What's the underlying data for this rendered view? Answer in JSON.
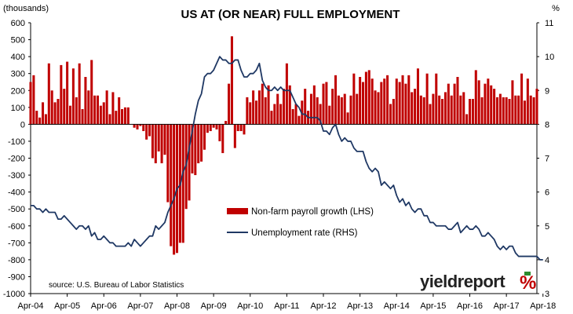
{
  "chart_data": {
    "type": "bar+line",
    "title": "US AT (OR NEAR) FULL EMPLOYMENT",
    "left_axis": {
      "unit_label": "(thousands)",
      "range": [
        -1000,
        600
      ],
      "ticks": [
        600,
        500,
        400,
        300,
        200,
        100,
        0,
        -100,
        -200,
        -300,
        -400,
        -500,
        -600,
        -700,
        -800,
        -900,
        -1000
      ]
    },
    "right_axis": {
      "unit_label": "%",
      "range": [
        3,
        11
      ],
      "ticks": [
        11,
        10,
        9,
        8,
        7,
        6,
        5,
        4,
        3
      ]
    },
    "x_axis": {
      "ticks": [
        "Apr-04",
        "Apr-05",
        "Apr-06",
        "Apr-07",
        "Apr-08",
        "Apr-09",
        "Apr-10",
        "Apr-11",
        "Apr-12",
        "Apr-13",
        "Apr-14",
        "Apr-15",
        "Apr-16",
        "Apr-17",
        "Apr-18"
      ]
    },
    "start_month": "Apr-04",
    "series": [
      {
        "name": "Non-farm payroll growth (LHS)",
        "type": "bar",
        "axis": "left",
        "color": "#c00000",
        "values": [
          250,
          290,
          80,
          40,
          130,
          60,
          360,
          200,
          130,
          150,
          350,
          210,
          370,
          110,
          330,
          160,
          360,
          90,
          280,
          200,
          380,
          170,
          170,
          110,
          130,
          200,
          60,
          190,
          80,
          160,
          90,
          100,
          100,
          0,
          -20,
          -30,
          -10,
          -40,
          -90,
          -70,
          -200,
          -230,
          -160,
          -230,
          -180,
          -460,
          -720,
          -770,
          -760,
          -700,
          -700,
          -500,
          -450,
          -290,
          -300,
          -230,
          -220,
          -150,
          -50,
          -40,
          -20,
          -30,
          -100,
          -170,
          20,
          240,
          520,
          -140,
          -40,
          -40,
          -60,
          160,
          130,
          200,
          140,
          200,
          240,
          160,
          230,
          80,
          120,
          180,
          120,
          210,
          360,
          230,
          90,
          120,
          50,
          140,
          210,
          80,
          180,
          230,
          160,
          120,
          240,
          250,
          110,
          210,
          290,
          170,
          160,
          180,
          70,
          170,
          300,
          180,
          280,
          250,
          310,
          320,
          270,
          200,
          190,
          250,
          270,
          290,
          120,
          150,
          270,
          250,
          290,
          240,
          290,
          190,
          210,
          330,
          170,
          160,
          300,
          120,
          180,
          300,
          170,
          150,
          190,
          240,
          170,
          240,
          280,
          170,
          190,
          60,
          150,
          150,
          320,
          260,
          160,
          240,
          270,
          230,
          210,
          160,
          180,
          160,
          160,
          150,
          260,
          170,
          170,
          300,
          140,
          270,
          170,
          160,
          210
        ]
      },
      {
        "name": "Unemployment rate (RHS)",
        "type": "line",
        "axis": "right",
        "color": "#1f3864",
        "values": [
          5.6,
          5.6,
          5.5,
          5.5,
          5.4,
          5.5,
          5.4,
          5.4,
          5.4,
          5.2,
          5.2,
          5.3,
          5.2,
          5.1,
          5.0,
          4.9,
          5.0,
          5.0,
          4.9,
          5.0,
          4.7,
          4.8,
          4.6,
          4.6,
          4.7,
          4.6,
          4.5,
          4.5,
          4.4,
          4.4,
          4.4,
          4.4,
          4.5,
          4.4,
          4.6,
          4.5,
          4.4,
          4.5,
          4.6,
          4.7,
          4.7,
          5.0,
          4.9,
          5.0,
          5.1,
          5.4,
          5.6,
          5.8,
          6.1,
          6.2,
          6.6,
          6.8,
          7.3,
          7.8,
          8.3,
          8.7,
          8.9,
          9.4,
          9.5,
          9.5,
          9.6,
          9.8,
          10.0,
          9.9,
          9.9,
          9.8,
          9.8,
          9.9,
          9.9,
          9.6,
          9.4,
          9.4,
          9.5,
          9.5,
          9.6,
          9.8,
          9.3,
          9.1,
          9.0,
          9.0,
          9.1,
          9.0,
          9.1,
          9.0,
          9.0,
          9.0,
          8.8,
          8.6,
          8.5,
          8.3,
          8.3,
          8.2,
          8.2,
          8.2,
          8.2,
          8.1,
          7.8,
          7.8,
          7.7,
          7.9,
          8.0,
          7.7,
          7.5,
          7.6,
          7.5,
          7.5,
          7.3,
          7.2,
          7.2,
          7.2,
          6.9,
          6.7,
          6.6,
          6.7,
          6.6,
          6.2,
          6.3,
          6.2,
          6.1,
          6.2,
          5.9,
          5.7,
          5.8,
          5.6,
          5.7,
          5.5,
          5.4,
          5.5,
          5.5,
          5.3,
          5.3,
          5.1,
          5.1,
          5.0,
          5.0,
          5.0,
          5.0,
          4.9,
          4.9,
          5.0,
          5.1,
          4.8,
          4.9,
          5.0,
          4.9,
          4.9,
          5.0,
          4.9,
          4.7,
          4.7,
          4.8,
          4.7,
          4.6,
          4.4,
          4.3,
          4.4,
          4.3,
          4.4,
          4.4,
          4.2,
          4.1,
          4.1,
          4.1,
          4.1,
          4.1,
          4.1,
          4.1,
          4.0,
          4.0
        ]
      }
    ],
    "legend": {
      "position": "center-right",
      "entries": [
        "Non-farm payroll growth (LHS)",
        "Unemployment rate (RHS)"
      ]
    },
    "annotations": {
      "source": "source: U.S. Bureau of Labor Statistics",
      "brand": "yieldreport",
      "brand_mark": "%"
    },
    "grid": false
  }
}
